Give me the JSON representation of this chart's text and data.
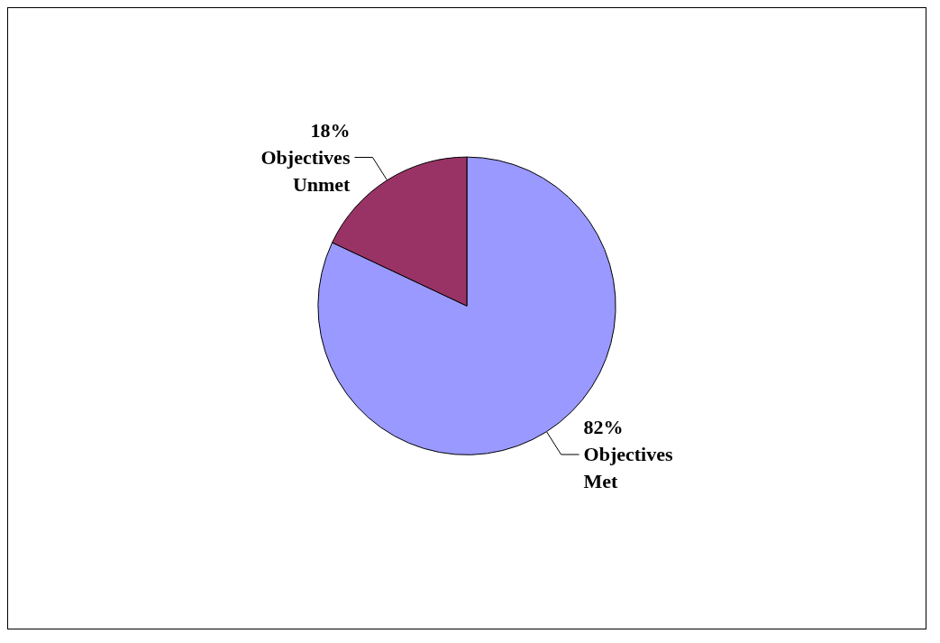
{
  "chart_data": {
    "type": "pie",
    "categories": [
      "Objectives Met",
      "Objectives Unmet"
    ],
    "values": [
      82,
      18
    ],
    "colors": [
      "#9999ff",
      "#993366"
    ],
    "value_labels": [
      "82%",
      "18%"
    ],
    "legend": false
  }
}
